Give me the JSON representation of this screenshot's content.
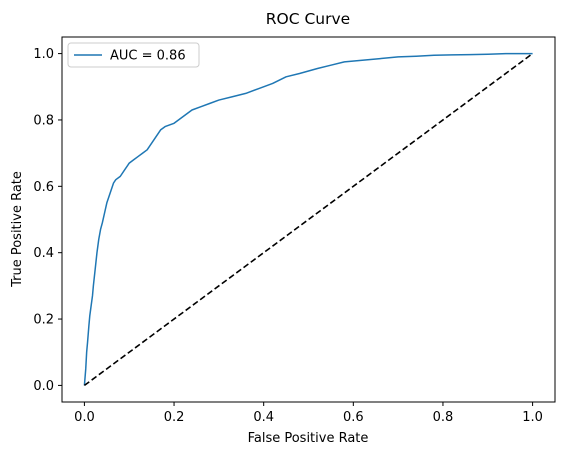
{
  "chart_data": {
    "type": "line",
    "title": "ROC Curve",
    "xlabel": "False Positive Rate",
    "ylabel": "True Positive Rate",
    "xlim": [
      -0.05,
      1.05
    ],
    "ylim": [
      -0.05,
      1.05
    ],
    "xticks": [
      0.0,
      0.2,
      0.4,
      0.6,
      0.8,
      1.0
    ],
    "yticks": [
      0.0,
      0.2,
      0.4,
      0.6,
      0.8,
      1.0
    ],
    "xtick_labels": [
      "0.0",
      "0.2",
      "0.4",
      "0.6",
      "0.8",
      "1.0"
    ],
    "ytick_labels": [
      "0.0",
      "0.2",
      "0.4",
      "0.6",
      "0.8",
      "1.0"
    ],
    "grid": false,
    "legend_position": "top-left",
    "series": [
      {
        "name": "AUC = 0.86",
        "color": "#1f77b4",
        "style": "solid",
        "x": [
          0.0,
          0.003,
          0.005,
          0.007,
          0.01,
          0.012,
          0.015,
          0.018,
          0.02,
          0.024,
          0.028,
          0.032,
          0.036,
          0.04,
          0.045,
          0.05,
          0.055,
          0.06,
          0.065,
          0.07,
          0.08,
          0.09,
          0.1,
          0.11,
          0.12,
          0.13,
          0.14,
          0.15,
          0.16,
          0.17,
          0.18,
          0.19,
          0.2,
          0.22,
          0.24,
          0.26,
          0.28,
          0.3,
          0.33,
          0.36,
          0.39,
          0.42,
          0.45,
          0.48,
          0.52,
          0.55,
          0.58,
          0.62,
          0.66,
          0.7,
          0.74,
          0.78,
          0.82,
          0.86,
          0.9,
          0.94,
          0.97,
          1.0
        ],
        "y": [
          0.0,
          0.05,
          0.1,
          0.13,
          0.18,
          0.21,
          0.24,
          0.27,
          0.3,
          0.35,
          0.4,
          0.44,
          0.47,
          0.49,
          0.52,
          0.55,
          0.57,
          0.59,
          0.61,
          0.62,
          0.63,
          0.65,
          0.67,
          0.68,
          0.69,
          0.7,
          0.71,
          0.73,
          0.75,
          0.77,
          0.78,
          0.785,
          0.79,
          0.81,
          0.83,
          0.84,
          0.85,
          0.86,
          0.87,
          0.88,
          0.895,
          0.91,
          0.93,
          0.94,
          0.955,
          0.965,
          0.975,
          0.98,
          0.985,
          0.99,
          0.992,
          0.995,
          0.996,
          0.997,
          0.998,
          1.0,
          1.0,
          1.0
        ]
      },
      {
        "name": "",
        "color": "#000000",
        "style": "dashed",
        "x": [
          0.0,
          1.0
        ],
        "y": [
          0.0,
          1.0
        ]
      }
    ]
  }
}
